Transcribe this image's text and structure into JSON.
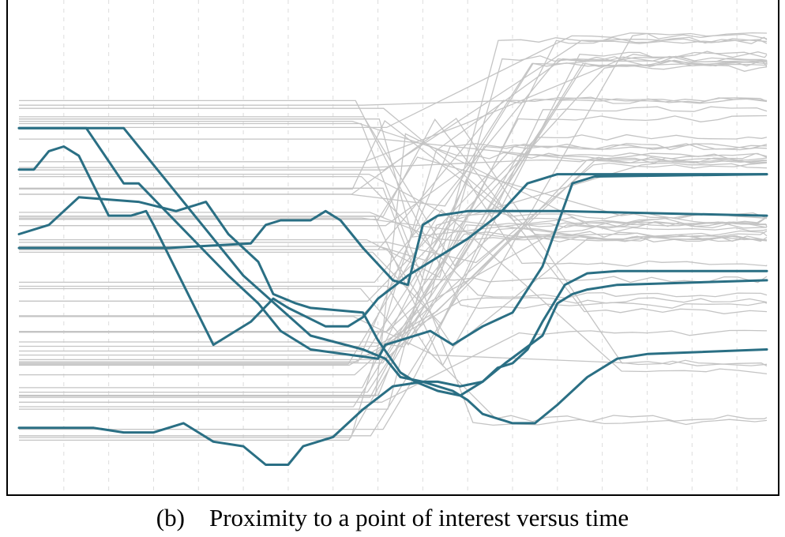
{
  "caption": {
    "label": "(b)",
    "text": "Proximity to a point of interest versus time"
  },
  "chart_data": {
    "type": "line",
    "title": "",
    "xlabel": "",
    "ylabel": "",
    "xlim": [
      0,
      100
    ],
    "ylim": [
      0,
      100
    ],
    "grid": "vertical dashed",
    "legend": "none",
    "axis_ticks_visible": false,
    "colors": {
      "highlight": "#2a6f84",
      "background": "#c4c4c4",
      "grid": "#dddddd"
    },
    "vertical_gridlines_x": [
      6,
      12,
      18,
      24,
      30,
      36,
      42,
      48,
      54,
      60,
      66,
      72,
      78,
      84,
      90,
      96
    ],
    "highlighted_series": [
      {
        "points": [
          [
            0,
            76
          ],
          [
            9,
            76
          ],
          [
            14,
            64
          ],
          [
            16,
            64
          ],
          [
            28,
            44
          ],
          [
            32,
            38
          ],
          [
            35,
            32
          ],
          [
            39,
            28
          ],
          [
            48,
            26
          ],
          [
            49,
            29
          ],
          [
            55,
            32
          ],
          [
            58,
            29
          ],
          [
            62,
            33
          ],
          [
            66,
            36
          ],
          [
            70,
            46
          ],
          [
            74,
            64
          ],
          [
            77,
            65.5
          ],
          [
            100,
            66
          ]
        ]
      },
      {
        "points": [
          [
            0,
            76
          ],
          [
            14,
            76
          ],
          [
            17,
            70
          ],
          [
            30,
            44
          ],
          [
            39,
            31
          ],
          [
            46,
            28
          ],
          [
            49,
            26
          ],
          [
            51,
            22
          ],
          [
            54,
            21
          ],
          [
            56,
            21
          ],
          [
            59,
            20
          ],
          [
            62,
            21
          ],
          [
            64,
            24
          ],
          [
            66,
            25
          ],
          [
            68,
            28
          ],
          [
            70,
            34
          ],
          [
            73,
            42
          ],
          [
            76,
            44.5
          ],
          [
            80,
            45
          ],
          [
            100,
            45
          ]
        ]
      },
      {
        "points": [
          [
            0,
            67
          ],
          [
            2,
            67
          ],
          [
            4,
            71
          ],
          [
            6,
            72
          ],
          [
            8,
            70
          ],
          [
            12,
            57
          ],
          [
            15,
            57
          ],
          [
            17,
            58
          ],
          [
            18,
            55
          ],
          [
            26,
            29
          ],
          [
            31,
            34
          ],
          [
            34,
            39
          ],
          [
            36,
            37
          ],
          [
            41,
            33
          ],
          [
            44,
            33
          ],
          [
            46,
            35
          ],
          [
            48,
            39
          ],
          [
            52,
            44
          ],
          [
            55,
            47
          ],
          [
            60,
            52
          ],
          [
            64,
            57
          ],
          [
            68,
            64
          ],
          [
            72,
            66
          ],
          [
            100,
            66
          ]
        ]
      },
      {
        "points": [
          [
            0,
            53
          ],
          [
            4,
            55
          ],
          [
            8,
            61
          ],
          [
            16,
            60
          ],
          [
            21,
            58
          ],
          [
            25,
            60
          ],
          [
            28,
            53
          ],
          [
            32,
            47
          ],
          [
            34,
            40
          ],
          [
            37,
            38
          ],
          [
            39,
            37
          ],
          [
            46,
            36
          ],
          [
            48,
            30
          ],
          [
            51,
            23
          ],
          [
            53,
            21
          ],
          [
            56,
            19
          ],
          [
            59,
            18
          ],
          [
            62,
            21
          ],
          [
            65,
            25
          ],
          [
            70,
            31
          ],
          [
            72,
            38
          ],
          [
            74,
            40
          ],
          [
            76,
            41
          ],
          [
            80,
            42
          ],
          [
            100,
            43
          ]
        ]
      },
      {
        "points": [
          [
            0,
            50
          ],
          [
            20,
            50
          ],
          [
            31,
            51
          ],
          [
            33,
            55
          ],
          [
            35,
            56
          ],
          [
            39,
            56
          ],
          [
            41,
            58
          ],
          [
            43,
            56
          ],
          [
            46,
            50
          ],
          [
            50,
            43
          ],
          [
            52,
            42
          ],
          [
            54,
            55
          ],
          [
            56,
            57
          ],
          [
            60,
            58
          ],
          [
            64,
            58
          ],
          [
            68,
            58
          ],
          [
            72,
            58
          ],
          [
            100,
            57
          ]
        ]
      },
      {
        "points": [
          [
            0,
            11
          ],
          [
            10,
            11
          ],
          [
            14,
            10
          ],
          [
            18,
            10
          ],
          [
            22,
            12
          ],
          [
            26,
            8
          ],
          [
            30,
            7
          ],
          [
            33,
            3
          ],
          [
            36,
            3
          ],
          [
            38,
            7
          ],
          [
            42,
            9
          ],
          [
            46,
            15
          ],
          [
            50,
            20
          ],
          [
            54,
            21
          ],
          [
            58,
            19
          ],
          [
            60,
            17
          ],
          [
            62,
            14
          ],
          [
            66,
            12
          ],
          [
            69,
            12
          ],
          [
            72,
            16
          ],
          [
            76,
            22
          ],
          [
            80,
            26
          ],
          [
            84,
            27
          ],
          [
            100,
            28
          ]
        ]
      }
    ],
    "background_series_count": 60
  }
}
